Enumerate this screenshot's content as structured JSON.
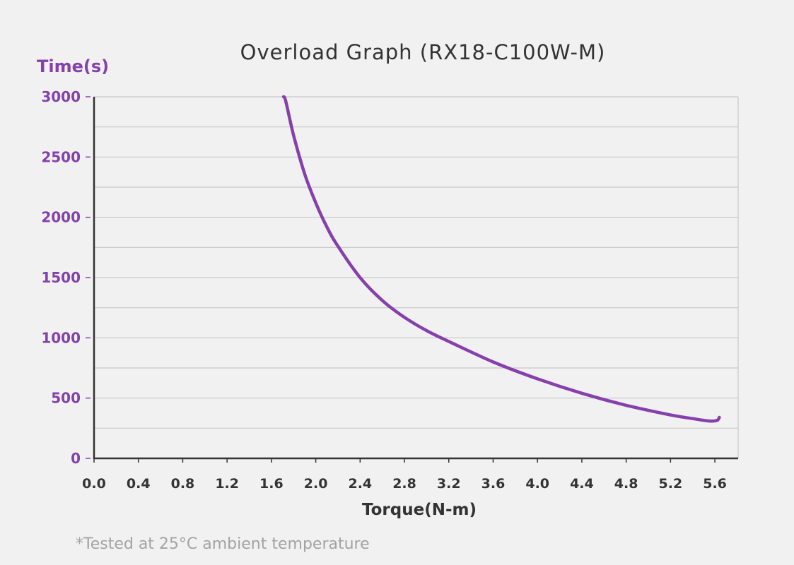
{
  "chart_data": {
    "type": "line",
    "title": "Overload Graph  (RX18-C100W-M)",
    "xlabel": "Torque(N-m)",
    "ylabel": "Time(s)",
    "xlim": [
      0,
      5.8
    ],
    "ylim": [
      0,
      3000
    ],
    "xticks": [
      0.0,
      0.4,
      0.8,
      1.2,
      1.6,
      2.0,
      2.4,
      2.8,
      3.2,
      3.6,
      4.0,
      4.4,
      4.8,
      5.2,
      5.6
    ],
    "xtick_labels": [
      "0.0",
      "0.4",
      "0.8",
      "1.2",
      "1.6",
      "2.0",
      "2.4",
      "2.8",
      "3.2",
      "3.6",
      "4.0",
      "4.4",
      "4.8",
      "5.2",
      "5.6"
    ],
    "yticks": [
      0,
      500,
      1000,
      1500,
      2000,
      2500,
      3000
    ],
    "ytick_labels": [
      "0",
      "500",
      "1000",
      "1500",
      "2000",
      "2500",
      "3000"
    ],
    "grid": true,
    "series": [
      {
        "x": [
          1.71,
          1.73,
          1.8,
          1.9,
          2.0,
          2.1,
          2.2,
          2.4,
          2.6,
          2.8,
          3.0,
          3.2,
          3.6,
          4.0,
          4.4,
          4.8,
          5.2,
          5.4,
          5.55,
          5.62,
          5.64
        ],
        "y": [
          3000,
          2960,
          2680,
          2360,
          2120,
          1920,
          1760,
          1500,
          1310,
          1170,
          1060,
          970,
          800,
          660,
          540,
          440,
          360,
          330,
          310,
          315,
          340
        ]
      }
    ],
    "footnote": "*Tested at 25°C ambient temperature"
  },
  "colors": {
    "accent": "#8640ab",
    "line": "#8640ab",
    "text": "#333333",
    "grid": "#c8c8c8",
    "axis": "#333333",
    "footnote": "#a3a3a3",
    "background": "#f1f1f1"
  }
}
